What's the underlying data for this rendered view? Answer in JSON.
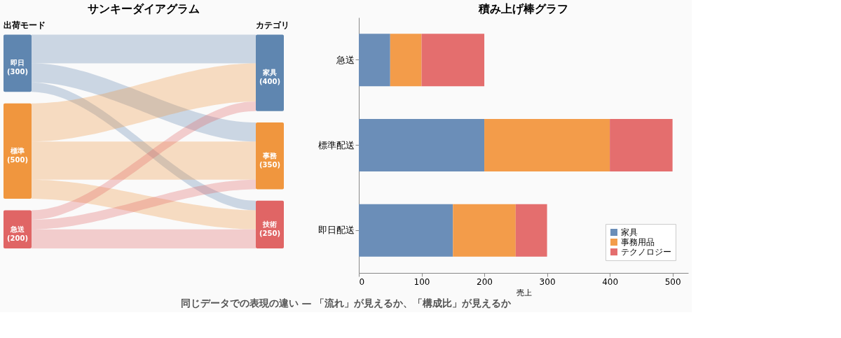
{
  "chart_data": [
    {
      "type": "other",
      "title": "サンキーダイアグラム",
      "categories": [
        "即日",
        "標準",
        "急送",
        "家具",
        "事務",
        "技術"
      ],
      "values": [
        300,
        500,
        200,
        400,
        350,
        250
      ],
      "value_labels": [
        "(300)",
        "(500)",
        "(200)",
        "(400)",
        "(350)",
        "(250)"
      ],
      "colors": [
        "#5f86b0",
        "#f0963e",
        "#e06565",
        "#5f86b0",
        "#f0963e",
        "#e06565"
      ],
      "annotations": [
        "出荷モード",
        "カテゴリ",
        "同じデータでの表現の違い — 「流れ」が見えるか、「構成比」が見えるか"
      ]
    },
    {
      "type": "bar",
      "title": "積み上げ棒グラフ",
      "orientation": "horizontal",
      "stacked": true,
      "categories": [
        "急送",
        "標準配送",
        "即日配送"
      ],
      "series": [
        {
          "name": "家具",
          "color": "#6b8eb8",
          "values": [
            50,
            200,
            150
          ]
        },
        {
          "name": "事務用品",
          "color": "#f39c4a",
          "values": [
            50,
            200,
            100
          ]
        },
        {
          "name": "テクノロジー",
          "color": "#e46e6e",
          "values": [
            100,
            100,
            50
          ]
        }
      ],
      "xlim": [
        0,
        525
      ],
      "xticks": [
        0,
        100,
        200,
        300,
        400,
        500
      ],
      "xlabel": "売上",
      "legend": "bottom right",
      "grid": false
    }
  ]
}
